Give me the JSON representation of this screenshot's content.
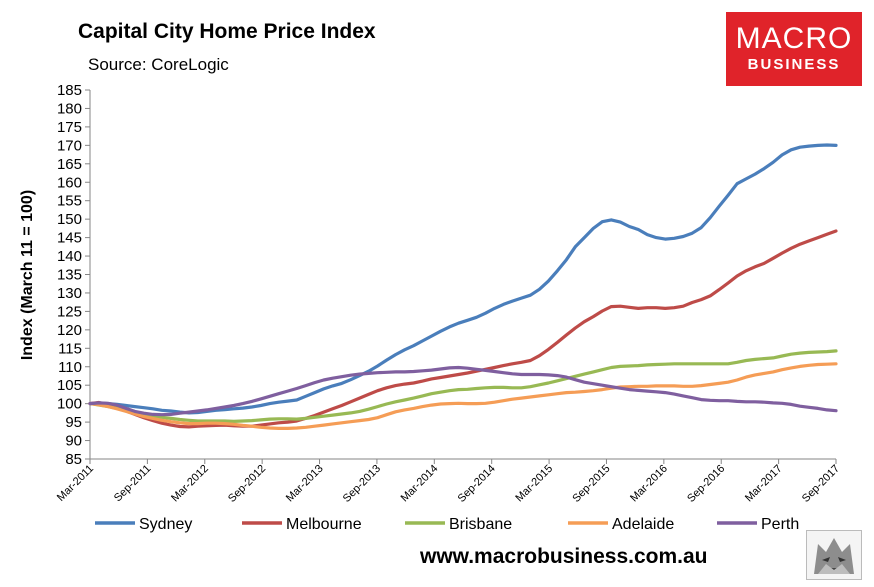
{
  "header": {
    "title": "Capital City Home Price Index",
    "subtitle": "Source: CoreLogic",
    "logo_line1": "MACRO",
    "logo_line2": "BUSINESS"
  },
  "footer": {
    "url": "www.macrobusiness.com.au"
  },
  "chart_data": {
    "type": "line",
    "title": "Capital City Home Price Index",
    "ylabel": "Index (March 11 = 100)",
    "ylim": [
      85,
      185
    ],
    "yticks": [
      85,
      90,
      95,
      100,
      105,
      110,
      115,
      120,
      125,
      130,
      135,
      140,
      145,
      150,
      155,
      160,
      165,
      170,
      175,
      180,
      185
    ],
    "xtick_labels": [
      "Mar-2011",
      "Sep-2011",
      "Mar-2012",
      "Sep-2012",
      "Mar-2013",
      "Sep-2013",
      "Mar-2014",
      "Sep-2014",
      "Mar-2015",
      "Sep-2015",
      "Mar-2016",
      "Sep-2016",
      "Mar-2017",
      "Sep-2017"
    ],
    "x_start": "Mar-2011",
    "x_end": "Sep-2017",
    "grid": false,
    "legend_position": "bottom",
    "series": [
      {
        "name": "Sydney",
        "color": "#4a7ebb",
        "values": [
          100,
          100.2,
          100,
          99.8,
          99.5,
          99.2,
          98.9,
          98.6,
          98.2,
          98,
          97.7,
          97.5,
          97.6,
          97.9,
          98.2,
          98.4,
          98.6,
          98.8,
          99.1,
          99.5,
          100,
          100.4,
          100.7,
          101,
          102,
          103,
          104,
          104.8,
          105.5,
          106.5,
          107.6,
          108.8,
          110.2,
          111.8,
          113.3,
          114.6,
          115.7,
          117,
          118.3,
          119.6,
          120.8,
          121.8,
          122.6,
          123.4,
          124.5,
          125.8,
          126.9,
          127.8,
          128.6,
          129.4,
          131,
          133.2,
          136,
          139,
          142.5,
          145,
          147.5,
          149.3,
          149.8,
          149.2,
          148,
          147.2,
          145.8,
          145,
          144.6,
          144.8,
          145.3,
          146.2,
          147.7,
          150.4,
          153.5,
          156.5,
          159.6,
          160.9,
          162.2,
          163.7,
          165.4,
          167.4,
          168.8,
          169.5,
          169.8,
          170,
          170.1,
          170
        ]
      },
      {
        "name": "Melbourne",
        "color": "#be4b48",
        "values": [
          100,
          100.3,
          99.6,
          98.9,
          98,
          97.1,
          96.2,
          95.4,
          94.7,
          94.2,
          93.8,
          93.7,
          93.9,
          94,
          94.1,
          94.2,
          94,
          93.9,
          93.9,
          94.2,
          94.5,
          94.8,
          95,
          95.3,
          96,
          96.8,
          97.7,
          98.6,
          99.5,
          100.5,
          101.5,
          102.5,
          103.5,
          104.3,
          104.9,
          105.3,
          105.6,
          106.1,
          106.7,
          107.1,
          107.5,
          107.9,
          108.3,
          108.8,
          109.3,
          109.8,
          110.3,
          110.8,
          111.2,
          111.7,
          113,
          114.7,
          116.6,
          118.6,
          120.5,
          122.2,
          123.6,
          125.1,
          126.3,
          126.4,
          126.1,
          125.8,
          126,
          126,
          125.8,
          126,
          126.4,
          127.4,
          128.2,
          129.2,
          130.9,
          132.7,
          134.6,
          136,
          137.1,
          138,
          139.4,
          140.8,
          142.1,
          143.2,
          144.1,
          145,
          145.9,
          146.8
        ]
      },
      {
        "name": "Brisbane",
        "color": "#98b954",
        "values": [
          100,
          99.6,
          99.2,
          98.7,
          98.1,
          97.6,
          97.1,
          96.7,
          96.3,
          96,
          95.7,
          95.5,
          95.3,
          95.3,
          95.3,
          95.3,
          95.2,
          95.3,
          95.4,
          95.6,
          95.8,
          95.9,
          95.9,
          95.8,
          96,
          96.3,
          96.6,
          96.9,
          97.2,
          97.5,
          97.9,
          98.5,
          99.2,
          99.9,
          100.5,
          101,
          101.5,
          102.1,
          102.7,
          103.1,
          103.5,
          103.8,
          103.9,
          104.1,
          104.3,
          104.4,
          104.4,
          104.3,
          104.3,
          104.6,
          105.1,
          105.6,
          106.2,
          106.8,
          107.4,
          108,
          108.6,
          109.2,
          109.8,
          110.1,
          110.2,
          110.3,
          110.5,
          110.6,
          110.7,
          110.8,
          110.8,
          110.8,
          110.8,
          110.8,
          110.8,
          110.8,
          111.2,
          111.7,
          112,
          112.2,
          112.4,
          112.9,
          113.4,
          113.7,
          113.9,
          114,
          114.1,
          114.3
        ]
      },
      {
        "name": "Adelaide",
        "color": "#f59d56",
        "values": [
          100,
          99.7,
          99.2,
          98.6,
          97.9,
          97.2,
          96.5,
          96,
          95.5,
          95.1,
          94.8,
          94.6,
          94.6,
          94.7,
          94.7,
          94.6,
          94.4,
          94.1,
          93.9,
          93.6,
          93.4,
          93.3,
          93.3,
          93.4,
          93.6,
          93.9,
          94.2,
          94.5,
          94.8,
          95.1,
          95.4,
          95.7,
          96.2,
          97,
          97.8,
          98.3,
          98.7,
          99.2,
          99.6,
          99.9,
          100,
          100.1,
          100,
          100,
          100.1,
          100.4,
          100.8,
          101.2,
          101.5,
          101.8,
          102.1,
          102.4,
          102.7,
          103,
          103.1,
          103.3,
          103.5,
          103.8,
          104.2,
          104.5,
          104.6,
          104.7,
          104.7,
          104.8,
          104.8,
          104.8,
          104.7,
          104.7,
          104.9,
          105.2,
          105.5,
          105.8,
          106.4,
          107.2,
          107.8,
          108.2,
          108.6,
          109.2,
          109.7,
          110.1,
          110.4,
          110.6,
          110.7,
          110.8
        ]
      },
      {
        "name": "Perth",
        "color": "#7f5f9f",
        "values": [
          100,
          100.2,
          100.1,
          99.6,
          98.7,
          97.9,
          97.4,
          97.1,
          97,
          97.1,
          97.4,
          97.7,
          98,
          98.3,
          98.7,
          99.1,
          99.5,
          100,
          100.6,
          101.3,
          102,
          102.7,
          103.4,
          104.1,
          104.9,
          105.7,
          106.4,
          106.9,
          107.3,
          107.7,
          108,
          108.2,
          108.4,
          108.5,
          108.6,
          108.6,
          108.7,
          108.9,
          109.1,
          109.4,
          109.7,
          109.8,
          109.6,
          109.3,
          109,
          108.7,
          108.4,
          108.1,
          107.9,
          107.9,
          107.9,
          107.8,
          107.6,
          107.2,
          106.5,
          105.8,
          105.4,
          105,
          104.6,
          104.2,
          103.8,
          103.6,
          103.4,
          103.2,
          103,
          102.6,
          102.1,
          101.6,
          101.1,
          100.9,
          100.8,
          100.8,
          100.6,
          100.5,
          100.5,
          100.4,
          100.2,
          100.1,
          99.8,
          99.3,
          99,
          98.7,
          98.3,
          98.1
        ]
      }
    ]
  }
}
